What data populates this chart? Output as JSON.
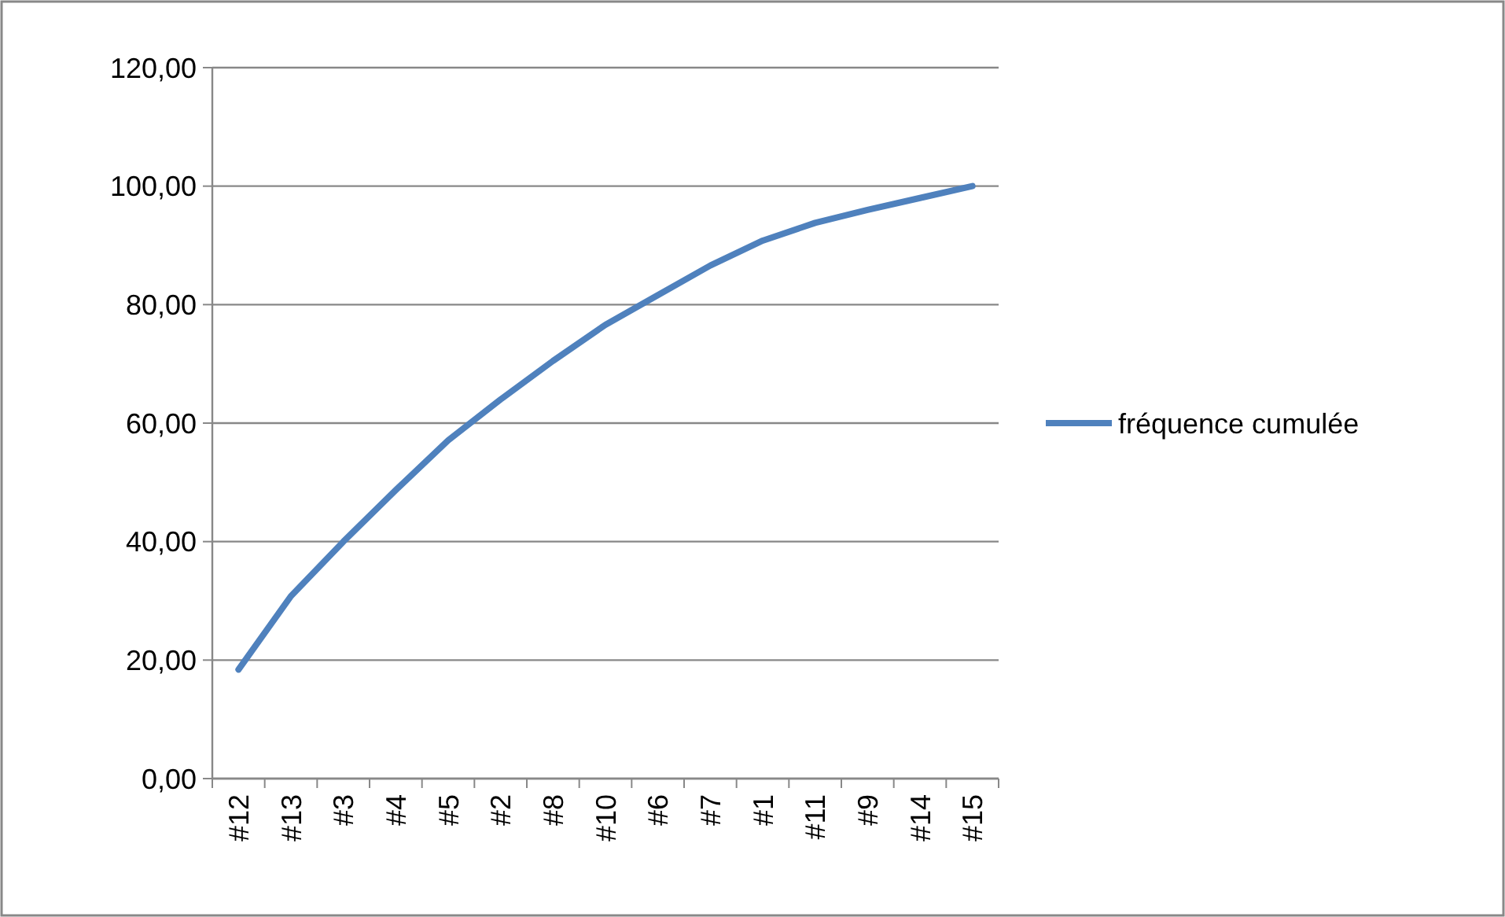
{
  "chart_data": {
    "type": "line",
    "categories": [
      "#12",
      "#13",
      "#3",
      "#4",
      "#5",
      "#2",
      "#8",
      "#10",
      "#6",
      "#7",
      "#1",
      "#11",
      "#9",
      "#14",
      "#15"
    ],
    "series": [
      {
        "name": "fréquence cumulée",
        "color": "#4f81bd",
        "values": [
          18.4,
          30.8,
          40,
          48.7,
          57.1,
          64,
          70.5,
          76.6,
          81.6,
          86.6,
          90.8,
          93.8,
          96,
          98,
          100
        ]
      }
    ],
    "ylim": [
      0,
      120
    ],
    "yticks": [
      {
        "value": 0,
        "label": "0,00"
      },
      {
        "value": 20,
        "label": "20,00"
      },
      {
        "value": 40,
        "label": "40,00"
      },
      {
        "value": 60,
        "label": "60,00"
      },
      {
        "value": 80,
        "label": "80,00"
      },
      {
        "value": 100,
        "label": "100,00"
      },
      {
        "value": 120,
        "label": "120,00"
      }
    ],
    "grid": "y",
    "legend": "right",
    "marker": "none",
    "line_style": "solid"
  }
}
